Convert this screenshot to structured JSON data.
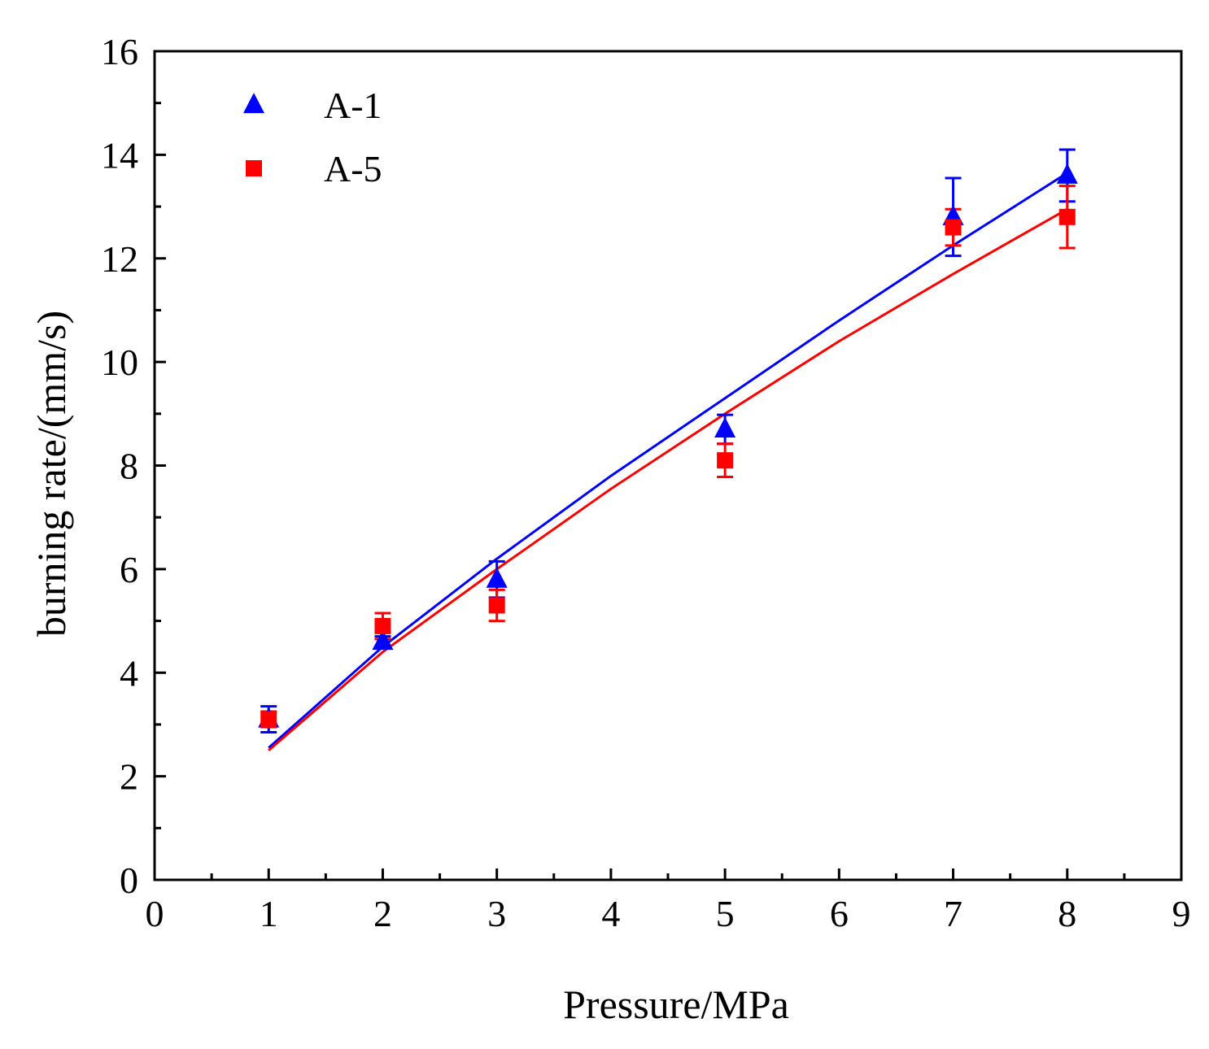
{
  "chart_data": {
    "type": "scatter",
    "xlabel": "Pressure/MPa",
    "ylabel": "burning rate/(mm/s)",
    "xlim": [
      0,
      9
    ],
    "ylim": [
      0,
      16
    ],
    "xticks": [
      0,
      1,
      2,
      3,
      4,
      5,
      6,
      7,
      8,
      9
    ],
    "yticks": [
      0,
      2,
      4,
      6,
      8,
      10,
      12,
      14,
      16
    ],
    "x_minor_step": 0.5,
    "y_minor_step": 1,
    "grid": false,
    "legend_position": "top-left",
    "series": [
      {
        "name": "A-1",
        "color": "#0000ff",
        "marker": "triangle",
        "x": [
          1,
          2,
          3,
          5,
          7,
          8
        ],
        "y": [
          3.1,
          4.6,
          5.8,
          8.7,
          12.8,
          13.6
        ],
        "err": [
          0.25,
          0.1,
          0.35,
          0.28,
          0.75,
          0.5
        ],
        "fit_x": [
          1,
          2,
          3,
          4,
          5,
          6,
          7,
          8
        ],
        "fit_y": [
          2.55,
          4.5,
          6.2,
          7.8,
          9.3,
          10.8,
          12.25,
          13.65
        ]
      },
      {
        "name": "A-5",
        "color": "#ff0000",
        "marker": "square",
        "x": [
          1,
          2,
          3,
          5,
          7,
          8
        ],
        "y": [
          3.1,
          4.9,
          5.3,
          8.1,
          12.6,
          12.8
        ],
        "err": [
          0.15,
          0.25,
          0.3,
          0.32,
          0.35,
          0.6
        ],
        "fit_x": [
          1,
          2,
          3,
          4,
          5,
          6,
          7,
          8
        ],
        "fit_y": [
          2.5,
          4.4,
          6.0,
          7.55,
          9.0,
          10.4,
          11.7,
          12.95
        ]
      }
    ]
  }
}
